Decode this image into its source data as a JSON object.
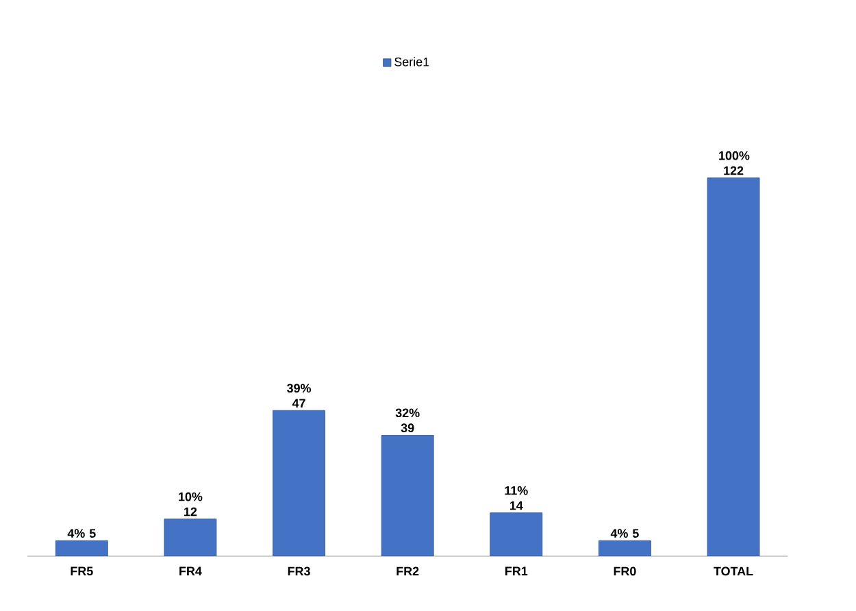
{
  "chart_data": {
    "type": "bar",
    "categories": [
      "FR5",
      "FR4",
      "FR3",
      "FR2",
      "FR1",
      "FR0",
      "TOTAL"
    ],
    "series": [
      {
        "name": "Serie1",
        "color": "#4472c4",
        "values": [
          5,
          12,
          47,
          39,
          14,
          5,
          122
        ],
        "value_labels": [
          "4% 5",
          "10% 12",
          "39% 47",
          "32% 39",
          "11% 14",
          "4% 5",
          "100% 122"
        ]
      }
    ],
    "legend": "top"
  }
}
